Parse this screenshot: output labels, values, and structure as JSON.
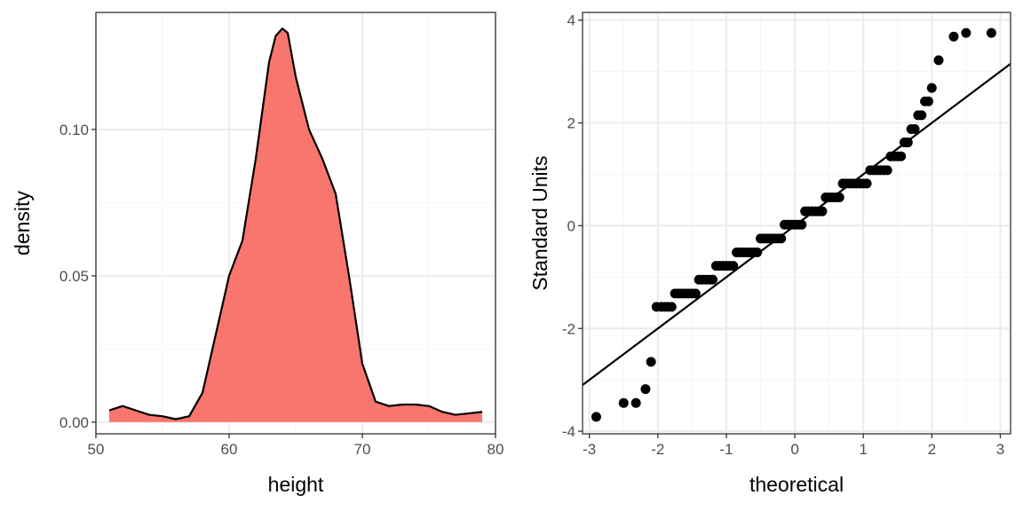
{
  "colors": {
    "fill": "#f8766d",
    "outline": "#000000",
    "grid_major": "#ebebeb",
    "grid_minor": "#f5f5f5",
    "panel_border": "#333333",
    "points": "#000000",
    "line": "#000000"
  },
  "chart_data": [
    {
      "type": "area",
      "subtype": "density",
      "xlabel": "height",
      "ylabel": "density",
      "xlim": [
        50,
        80
      ],
      "ylim": [
        -0.004,
        0.14
      ],
      "xticks": [
        50,
        60,
        70,
        80
      ],
      "xtick_labels": [
        "50",
        "60",
        "70",
        "80"
      ],
      "yticks": [
        0.0,
        0.05,
        0.1
      ],
      "ytick_labels": [
        "0.00",
        "0.05",
        "0.10"
      ],
      "x": [
        51,
        52,
        53,
        54,
        55,
        56,
        57,
        58,
        59,
        60,
        61,
        62,
        63,
        63.5,
        64,
        64.4,
        65,
        66,
        67,
        68,
        69,
        70,
        71,
        72,
        73,
        74,
        75,
        76,
        77,
        78,
        79
      ],
      "y": [
        0.004,
        0.0055,
        0.004,
        0.0025,
        0.002,
        0.001,
        0.002,
        0.01,
        0.03,
        0.05,
        0.062,
        0.09,
        0.123,
        0.132,
        0.1345,
        0.133,
        0.118,
        0.1,
        0.09,
        0.078,
        0.05,
        0.02,
        0.007,
        0.0055,
        0.006,
        0.006,
        0.0055,
        0.0035,
        0.0025,
        0.003,
        0.0035
      ]
    },
    {
      "type": "scatter",
      "subtype": "qq",
      "xlabel": "theoretical",
      "ylabel": "Standard Units",
      "xlim": [
        -3.1,
        3.15
      ],
      "ylim": [
        -4.05,
        4.15
      ],
      "xticks": [
        -3,
        -2,
        -1,
        0,
        1,
        2,
        3
      ],
      "xtick_labels": [
        "-3",
        "-2",
        "-1",
        "0",
        "1",
        "2",
        "3"
      ],
      "yticks": [
        -4,
        -2,
        0,
        2,
        4
      ],
      "ytick_labels": [
        "-4",
        "-2",
        "0",
        "2",
        "4"
      ],
      "reference_line": {
        "intercept": 0.0,
        "slope": 1.0
      },
      "x": [
        -2.9,
        -2.5,
        -2.32,
        -2.18,
        -2.1,
        -2.02,
        -1.95,
        -1.9,
        -1.85,
        -1.8,
        -1.75,
        -1.7,
        -1.65,
        -1.6,
        -1.55,
        -1.5,
        -1.45,
        -1.4,
        -1.35,
        -1.3,
        -1.25,
        -1.2,
        -1.15,
        -1.1,
        -1.05,
        -1.0,
        -0.95,
        -0.9,
        -0.85,
        -0.8,
        -0.75,
        -0.7,
        -0.65,
        -0.6,
        -0.55,
        -0.5,
        -0.45,
        -0.4,
        -0.35,
        -0.3,
        -0.25,
        -0.2,
        -0.15,
        -0.1,
        -0.05,
        0.0,
        0.05,
        0.1,
        0.15,
        0.2,
        0.25,
        0.3,
        0.35,
        0.4,
        0.45,
        0.5,
        0.55,
        0.6,
        0.65,
        0.7,
        0.75,
        0.8,
        0.85,
        0.9,
        0.95,
        1.0,
        1.05,
        1.1,
        1.15,
        1.2,
        1.25,
        1.3,
        1.35,
        1.4,
        1.45,
        1.5,
        1.55,
        1.6,
        1.65,
        1.7,
        1.75,
        1.8,
        1.85,
        1.9,
        1.95,
        2.0,
        2.1,
        2.32,
        2.5,
        2.87
      ],
      "y": [
        -3.72,
        -3.45,
        -3.45,
        -3.18,
        -2.65,
        -1.58,
        -1.58,
        -1.58,
        -1.58,
        -1.58,
        -1.32,
        -1.32,
        -1.32,
        -1.32,
        -1.32,
        -1.32,
        -1.32,
        -1.05,
        -1.05,
        -1.05,
        -1.05,
        -1.05,
        -0.78,
        -0.78,
        -0.78,
        -0.78,
        -0.78,
        -0.78,
        -0.52,
        -0.52,
        -0.52,
        -0.52,
        -0.52,
        -0.52,
        -0.52,
        -0.25,
        -0.25,
        -0.25,
        -0.25,
        -0.25,
        -0.25,
        -0.25,
        0.02,
        0.02,
        0.02,
        0.02,
        0.02,
        0.02,
        0.28,
        0.28,
        0.28,
        0.28,
        0.28,
        0.28,
        0.55,
        0.55,
        0.55,
        0.55,
        0.55,
        0.82,
        0.82,
        0.82,
        0.82,
        0.82,
        0.82,
        0.82,
        0.82,
        1.08,
        1.08,
        1.08,
        1.08,
        1.08,
        1.08,
        1.35,
        1.35,
        1.35,
        1.35,
        1.62,
        1.62,
        1.88,
        1.88,
        2.15,
        2.15,
        2.42,
        2.42,
        2.68,
        3.22,
        3.68,
        3.75,
        3.75
      ]
    }
  ]
}
